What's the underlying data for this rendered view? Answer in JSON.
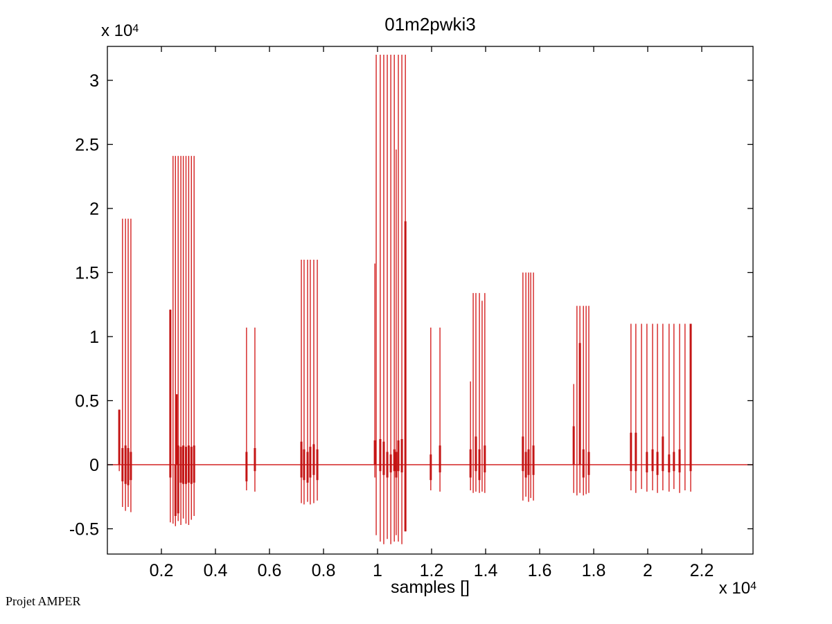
{
  "window": {
    "background": "#ffffff"
  },
  "figure": {
    "title": "01m2pwki3",
    "xlabel": "samples []",
    "y_axis_multiplier": {
      "base": "x 10",
      "exp": "4"
    },
    "x_axis_multiplier": {
      "base": "x 10",
      "exp": "4"
    },
    "footer_text": "Projet AMPER",
    "colors": {
      "signal": "#d42020",
      "signal_bold": "#c41414",
      "axis": "#000000",
      "text": "#000000",
      "background": "#ffffff"
    }
  },
  "chart_data": {
    "type": "line",
    "subtype": "pulse-train-signal",
    "title": "01m2pwki3",
    "xlabel": "samples []",
    "ylabel": "",
    "units_note": "both axes in units of 10^4 (x 10^4 multiplier labels shown)",
    "x_scale_factor": 10000,
    "y_scale_factor": 10000,
    "xlim": [
      0,
      2.39
    ],
    "ylim": [
      -0.697,
      3.265
    ],
    "x_ticks": [
      0.2,
      0.4,
      0.6,
      0.8,
      1,
      1.2,
      1.4,
      1.6,
      1.8,
      2,
      2.2
    ],
    "x_tick_labels": [
      "0.2",
      "0.4",
      "0.6",
      "0.8",
      "1",
      "1.2",
      "1.4",
      "1.6",
      "1.8",
      "2",
      "2.2"
    ],
    "y_ticks": [
      3,
      2.5,
      2,
      1.5,
      1,
      0.5,
      0,
      -0.5
    ],
    "y_tick_labels": [
      "3",
      "2.5",
      "2",
      "1.5",
      "1",
      "0.5",
      "0",
      "-0.5"
    ],
    "baseline_value": 0,
    "grid": false,
    "legend": null,
    "bursts": [
      {
        "id": "burst-1",
        "spikes": [
          [
            0.044,
            0.43,
            -0.05
          ],
          [
            0.056,
            1.92,
            -0.33
          ],
          [
            0.067,
            1.92,
            -0.36
          ],
          [
            0.077,
            1.92,
            -0.33
          ],
          [
            0.087,
            1.92,
            -0.37
          ]
        ],
        "base_bars": [
          [
            0.044,
            0.43,
            0
          ],
          [
            0.056,
            0.13,
            -0.13
          ],
          [
            0.067,
            0.15,
            -0.15
          ],
          [
            0.077,
            0.13,
            -0.16
          ],
          [
            0.087,
            0.1,
            -0.12
          ]
        ]
      },
      {
        "id": "burst-2",
        "spikes": [
          [
            0.233,
            1.21,
            -0.45
          ],
          [
            0.243,
            2.41,
            -0.46
          ],
          [
            0.252,
            2.41,
            -0.48
          ],
          [
            0.262,
            2.41,
            -0.44
          ],
          [
            0.272,
            2.41,
            -0.47
          ],
          [
            0.281,
            2.41,
            -0.42
          ],
          [
            0.291,
            2.41,
            -0.46
          ],
          [
            0.301,
            2.41,
            -0.47
          ],
          [
            0.311,
            2.41,
            -0.43
          ],
          [
            0.321,
            2.41,
            -0.4
          ]
        ],
        "base_bars": [
          [
            0.233,
            1.21,
            -0.1
          ],
          [
            0.256,
            0.55,
            0
          ],
          [
            0.252,
            0,
            -0.4
          ],
          [
            0.262,
            0.15,
            -0.38
          ],
          [
            0.272,
            0.14,
            -0.14
          ],
          [
            0.281,
            0.15,
            -0.15
          ],
          [
            0.291,
            0.14,
            -0.15
          ],
          [
            0.301,
            0.15,
            -0.14
          ],
          [
            0.311,
            0.14,
            -0.15
          ],
          [
            0.321,
            0.15,
            -0.14
          ]
        ]
      },
      {
        "id": "burst-3",
        "spikes": [
          [
            0.515,
            1.07,
            -0.2
          ],
          [
            0.546,
            1.07,
            -0.21
          ]
        ],
        "base_bars": [
          [
            0.515,
            0.1,
            -0.13
          ],
          [
            0.546,
            0.13,
            -0.05
          ]
        ]
      },
      {
        "id": "burst-4",
        "spikes": [
          [
            0.718,
            1.6,
            -0.3
          ],
          [
            0.728,
            1.6,
            -0.31
          ],
          [
            0.741,
            1.6,
            -0.29
          ],
          [
            0.751,
            1.6,
            -0.31
          ],
          [
            0.764,
            1.6,
            -0.3
          ],
          [
            0.777,
            1.6,
            -0.28
          ]
        ],
        "base_bars": [
          [
            0.718,
            0.18,
            -0.1
          ],
          [
            0.728,
            0.12,
            -0.12
          ],
          [
            0.741,
            0.1,
            -0.14
          ],
          [
            0.751,
            0.14,
            -0.1
          ],
          [
            0.764,
            0.16,
            -0.08
          ],
          [
            0.777,
            0.12,
            -0.12
          ]
        ]
      },
      {
        "id": "burst-5",
        "spikes": [
          [
            0.99,
            1.57,
            -0.1
          ],
          [
            0.995,
            3.2,
            -0.55
          ],
          [
            1.01,
            3.2,
            -0.6
          ],
          [
            1.023,
            3.2,
            -0.62
          ],
          [
            1.036,
            3.2,
            -0.58
          ],
          [
            1.049,
            3.2,
            -0.62
          ],
          [
            1.062,
            3.2,
            -0.6
          ],
          [
            1.069,
            2.46,
            -0.55
          ],
          [
            1.077,
            3.2,
            -0.6
          ],
          [
            1.09,
            3.2,
            -0.62
          ],
          [
            1.103,
            3.2,
            -0.52
          ]
        ],
        "base_bars": [
          [
            0.99,
            0.19,
            0
          ],
          [
            1.01,
            0.2,
            -0.05
          ],
          [
            1.023,
            0.18,
            -0.08
          ],
          [
            1.036,
            0.1,
            -0.1
          ],
          [
            1.049,
            0.08,
            -0.06
          ],
          [
            1.062,
            0.12,
            -0.05
          ],
          [
            1.069,
            0.1,
            -0.1
          ],
          [
            1.077,
            0.19,
            -0.05
          ],
          [
            1.09,
            0.2,
            -0.06
          ],
          [
            1.103,
            1.9,
            -0.52
          ]
        ]
      },
      {
        "id": "burst-6",
        "spikes": [
          [
            1.197,
            1.07,
            -0.2
          ],
          [
            1.231,
            1.07,
            -0.21
          ]
        ],
        "base_bars": [
          [
            1.197,
            0.08,
            -0.12
          ],
          [
            1.231,
            0.15,
            -0.06
          ]
        ]
      },
      {
        "id": "burst-7",
        "spikes": [
          [
            1.344,
            0.65,
            -0.2
          ],
          [
            1.354,
            1.34,
            -0.22
          ],
          [
            1.364,
            1.34,
            -0.21
          ],
          [
            1.377,
            1.34,
            -0.22
          ],
          [
            1.387,
            1.28,
            -0.21
          ],
          [
            1.397,
            1.34,
            -0.22
          ]
        ],
        "base_bars": [
          [
            1.344,
            0.12,
            -0.1
          ],
          [
            1.364,
            0.22,
            -0.05
          ],
          [
            1.377,
            0.12,
            -0.12
          ],
          [
            1.397,
            0.15,
            -0.06
          ]
        ]
      },
      {
        "id": "burst-8",
        "spikes": [
          [
            1.538,
            1.5,
            -0.28
          ],
          [
            1.549,
            1.5,
            -0.25
          ],
          [
            1.559,
            1.5,
            -0.29
          ],
          [
            1.567,
            1.5,
            -0.26
          ],
          [
            1.577,
            1.5,
            -0.28
          ]
        ],
        "base_bars": [
          [
            1.538,
            0.22,
            -0.05
          ],
          [
            1.549,
            0.1,
            -0.1
          ],
          [
            1.559,
            0.12,
            -0.08
          ],
          [
            1.577,
            0.15,
            -0.08
          ]
        ]
      },
      {
        "id": "burst-9",
        "spikes": [
          [
            1.726,
            0.63,
            -0.22
          ],
          [
            1.738,
            1.24,
            -0.24
          ],
          [
            1.749,
            1.24,
            -0.22
          ],
          [
            1.762,
            1.24,
            -0.24
          ],
          [
            1.772,
            1.24,
            -0.23
          ],
          [
            1.782,
            1.24,
            -0.22
          ]
        ],
        "base_bars": [
          [
            1.726,
            0.3,
            0
          ],
          [
            1.749,
            0.95,
            0
          ],
          [
            1.762,
            0.12,
            -0.1
          ],
          [
            1.782,
            0.1,
            -0.08
          ]
        ]
      },
      {
        "id": "burst-10",
        "spikes": [
          [
            1.938,
            1.1,
            -0.2
          ],
          [
            1.956,
            1.1,
            -0.22
          ],
          [
            1.977,
            1.1,
            -0.19
          ],
          [
            1.997,
            1.1,
            -0.21
          ],
          [
            2.018,
            1.1,
            -0.2
          ],
          [
            2.036,
            1.1,
            -0.22
          ],
          [
            2.056,
            1.1,
            -0.2
          ],
          [
            2.079,
            1.1,
            -0.21
          ],
          [
            2.097,
            1.1,
            -0.19
          ],
          [
            2.118,
            1.1,
            -0.22
          ],
          [
            2.138,
            1.1,
            -0.2
          ],
          [
            2.159,
            1.1,
            -0.21
          ]
        ],
        "base_bars": [
          [
            1.938,
            0.25,
            -0.05
          ],
          [
            1.956,
            0.25,
            -0.05
          ],
          [
            1.997,
            0.1,
            -0.06
          ],
          [
            2.018,
            0.12,
            -0.05
          ],
          [
            2.036,
            0.1,
            -0.08
          ],
          [
            2.056,
            0.22,
            -0.05
          ],
          [
            2.079,
            0.08,
            -0.06
          ],
          [
            2.097,
            0.1,
            -0.05
          ],
          [
            2.118,
            0.12,
            -0.06
          ],
          [
            2.159,
            1.1,
            -0.05
          ]
        ]
      }
    ]
  }
}
